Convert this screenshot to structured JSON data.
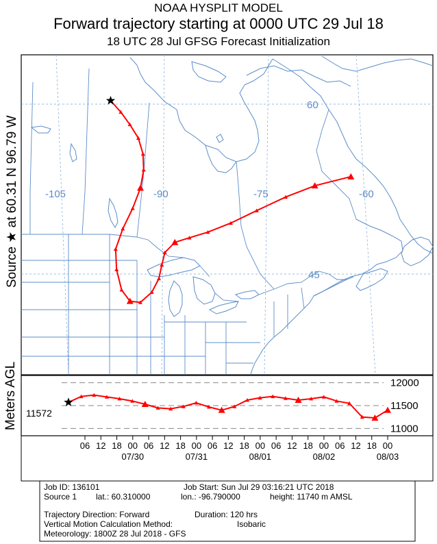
{
  "header": {
    "model": "NOAA HYSPLIT MODEL",
    "title": "Forward trajectory starting at 0000 UTC 29 Jul 18",
    "subtitle": "18 UTC 28 Jul    GFSG  Forecast Initialization"
  },
  "source_label": "Source ★  at   60.31 N   96.79 W",
  "map": {
    "meridian_labels": [
      "-105",
      "-90",
      "-75",
      "-60"
    ],
    "parallel_labels": [
      "60",
      "45"
    ],
    "colors": {
      "trajectory": "#ff0000",
      "coast": "#5b8cc9",
      "grid": "#7aa6d6",
      "grid_label": "#5b8cc9",
      "marker": "#000000"
    },
    "source_marker": "star-icon",
    "point_marker": "triangle-icon",
    "trajectory": [
      {
        "lon": -96.79,
        "lat": 60.31
      },
      {
        "lon": -95.4,
        "lat": 59.3
      },
      {
        "lon": -94.2,
        "lat": 58.2
      },
      {
        "lon": -93.1,
        "lat": 57.0
      },
      {
        "lon": -92.6,
        "lat": 55.6
      },
      {
        "lon": -92.7,
        "lat": 54.2
      },
      {
        "lon": -93.4,
        "lat": 52.6
      },
      {
        "lon": -94.8,
        "lat": 50.8
      },
      {
        "lon": -96.5,
        "lat": 49.0
      },
      {
        "lon": -97.8,
        "lat": 47.2
      },
      {
        "lon": -97.9,
        "lat": 45.4
      },
      {
        "lon": -97.4,
        "lat": 43.6
      },
      {
        "lon": -96.3,
        "lat": 42.6
      },
      {
        "lon": -94.8,
        "lat": 42.5
      },
      {
        "lon": -93.0,
        "lat": 43.4
      },
      {
        "lon": -91.8,
        "lat": 44.6
      },
      {
        "lon": -91.2,
        "lat": 45.8
      },
      {
        "lon": -90.6,
        "lat": 46.9
      },
      {
        "lon": -89.0,
        "lat": 47.8
      },
      {
        "lon": -86.8,
        "lat": 48.2
      },
      {
        "lon": -84.0,
        "lat": 48.7
      },
      {
        "lon": -80.5,
        "lat": 49.5
      },
      {
        "lon": -76.5,
        "lat": 50.6
      },
      {
        "lon": -72.0,
        "lat": 51.8
      },
      {
        "lon": -67.5,
        "lat": 52.8
      },
      {
        "lon": -62.0,
        "lat": 53.6
      }
    ]
  },
  "height_panel": {
    "ylabel": "Meters AGL",
    "source_height_label": "11572",
    "ticks": [
      "12000",
      "11500",
      "11000"
    ],
    "ylim": [
      10900,
      12100
    ],
    "values": [
      11572,
      11700,
      11730,
      11690,
      11650,
      11600,
      11530,
      11450,
      11430,
      11480,
      11560,
      11470,
      11400,
      11480,
      11620,
      11670,
      11700,
      11660,
      11620,
      11650,
      11690,
      11600,
      11550,
      11250,
      11230,
      11400
    ]
  },
  "time_axis": {
    "hour_labels": [
      "06",
      "12",
      "18",
      "00",
      "06",
      "12",
      "18",
      "00",
      "06",
      "12",
      "18",
      "00",
      "06",
      "12",
      "18",
      "00",
      "06",
      "12",
      "18",
      "00"
    ],
    "date_labels": [
      "07/30",
      "07/31",
      "08/01",
      "08/02",
      "08/03"
    ]
  },
  "info": {
    "job_id": "Job ID: 136101",
    "job_start": "Job Start: Sun Jul 29 03:16:21 UTC 2018",
    "source": "Source 1",
    "lat": "lat.: 60.310000",
    "lon": "lon.: -96.790000",
    "height": "height: 11740 m AMSL",
    "direction": "Trajectory Direction: Forward",
    "duration": "Duration: 120 hrs",
    "vertical": "Vertical Motion Calculation Method:",
    "vertical_value": "Isobaric",
    "meteorology": "Meteorology: 1800Z 28 Jul 2018 - GFS"
  }
}
